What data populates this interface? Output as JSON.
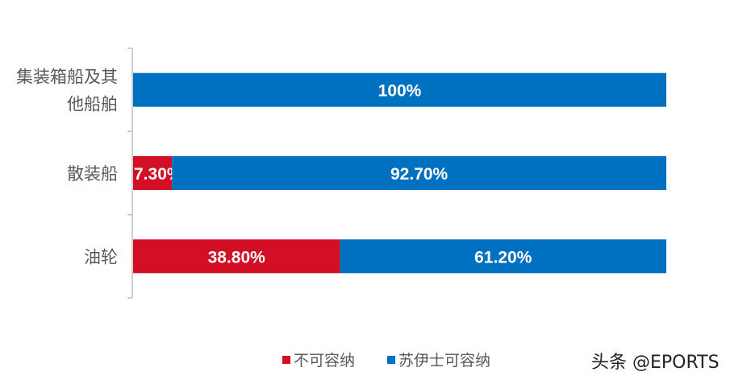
{
  "chart_data": {
    "type": "bar",
    "orientation": "horizontal",
    "stacked": true,
    "categories": [
      "集装箱船及其他船舶",
      "散装船",
      "油轮"
    ],
    "category_lines": [
      [
        "集装箱船及其",
        "他船舶"
      ],
      [
        "散装船"
      ],
      [
        "油轮"
      ]
    ],
    "series": [
      {
        "name": "不可容纳",
        "values": [
          0,
          7.3,
          38.8
        ],
        "labels": [
          "",
          "7.30%",
          "38.80%"
        ],
        "color": "#D20F25"
      },
      {
        "name": "苏伊士可容纳",
        "values": [
          100,
          92.7,
          61.2
        ],
        "labels": [
          "100%",
          "92.70%",
          "61.20%"
        ],
        "color": "#0070C0"
      }
    ],
    "xlim": [
      0,
      100
    ],
    "unit": "%",
    "grid": false,
    "legend": "bottom"
  },
  "watermark": "头条 @EPORTS"
}
